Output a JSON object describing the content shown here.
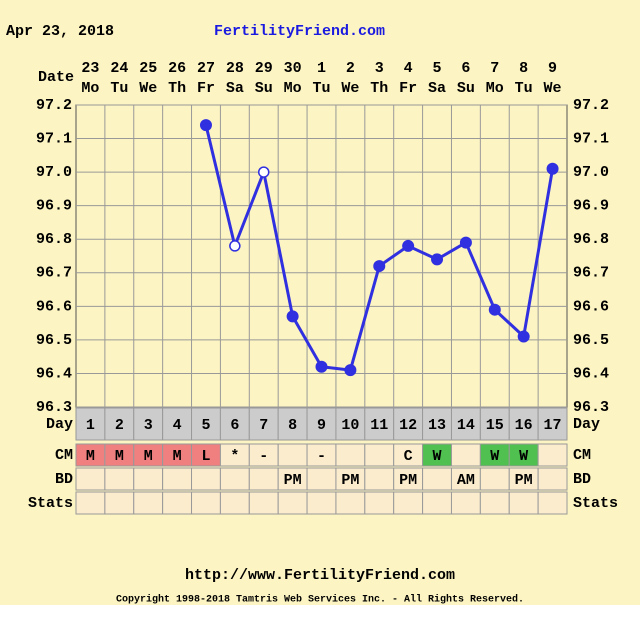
{
  "header": {
    "date": "Apr 23, 2018",
    "site": "FertilityFriend.com"
  },
  "chart_data": {
    "type": "line",
    "dates": [
      "23",
      "24",
      "25",
      "26",
      "27",
      "28",
      "29",
      "30",
      "1",
      "2",
      "3",
      "4",
      "5",
      "6",
      "7",
      "8",
      "9"
    ],
    "weekdays": [
      "Mo",
      "Tu",
      "We",
      "Th",
      "Fr",
      "Sa",
      "Su",
      "Mo",
      "Tu",
      "We",
      "Th",
      "Fr",
      "Sa",
      "Su",
      "Mo",
      "Tu",
      "We"
    ],
    "cycle_days": [
      1,
      2,
      3,
      4,
      5,
      6,
      7,
      8,
      9,
      10,
      11,
      12,
      13,
      14,
      15,
      16,
      17
    ],
    "values": [
      null,
      null,
      null,
      null,
      97.14,
      96.78,
      97.0,
      96.57,
      96.42,
      96.41,
      96.72,
      96.78,
      96.74,
      96.79,
      96.59,
      96.51,
      97.01
    ],
    "markers": [
      null,
      null,
      null,
      null,
      "filled",
      "open",
      "open",
      "filled",
      "filled",
      "filled",
      "filled",
      "filled",
      "filled",
      "filled",
      "filled",
      "filled",
      "filled"
    ],
    "color": "#3030e0",
    "ylim": [
      96.3,
      97.2
    ],
    "yticks": [
      96.3,
      96.4,
      96.5,
      96.6,
      96.7,
      96.8,
      96.9,
      {
        "value": 97,
        "label": "97.0"
      },
      97.1,
      97.2
    ],
    "grid": true,
    "row_labels": {
      "date": "Date",
      "day": "Day",
      "cm": "CM",
      "bd": "BD",
      "stats": "Stats"
    },
    "cm": [
      "M",
      "M",
      "M",
      "M",
      "L",
      "*",
      "-",
      null,
      "-",
      null,
      null,
      "C",
      "W",
      null,
      "W",
      "W",
      null
    ],
    "bd": [
      null,
      null,
      null,
      null,
      null,
      null,
      null,
      "PM",
      null,
      "PM",
      null,
      "PM",
      null,
      "AM",
      null,
      "PM",
      null
    ],
    "cm_colors": {
      "M": "#f08080",
      "L": "#f08080",
      "W": "#50c050"
    }
  },
  "footer": {
    "url": "http://www.FertilityFriend.com",
    "copyright": "Copyright 1998-2018 Tamtris Web Services Inc. - All Rights Reserved."
  }
}
